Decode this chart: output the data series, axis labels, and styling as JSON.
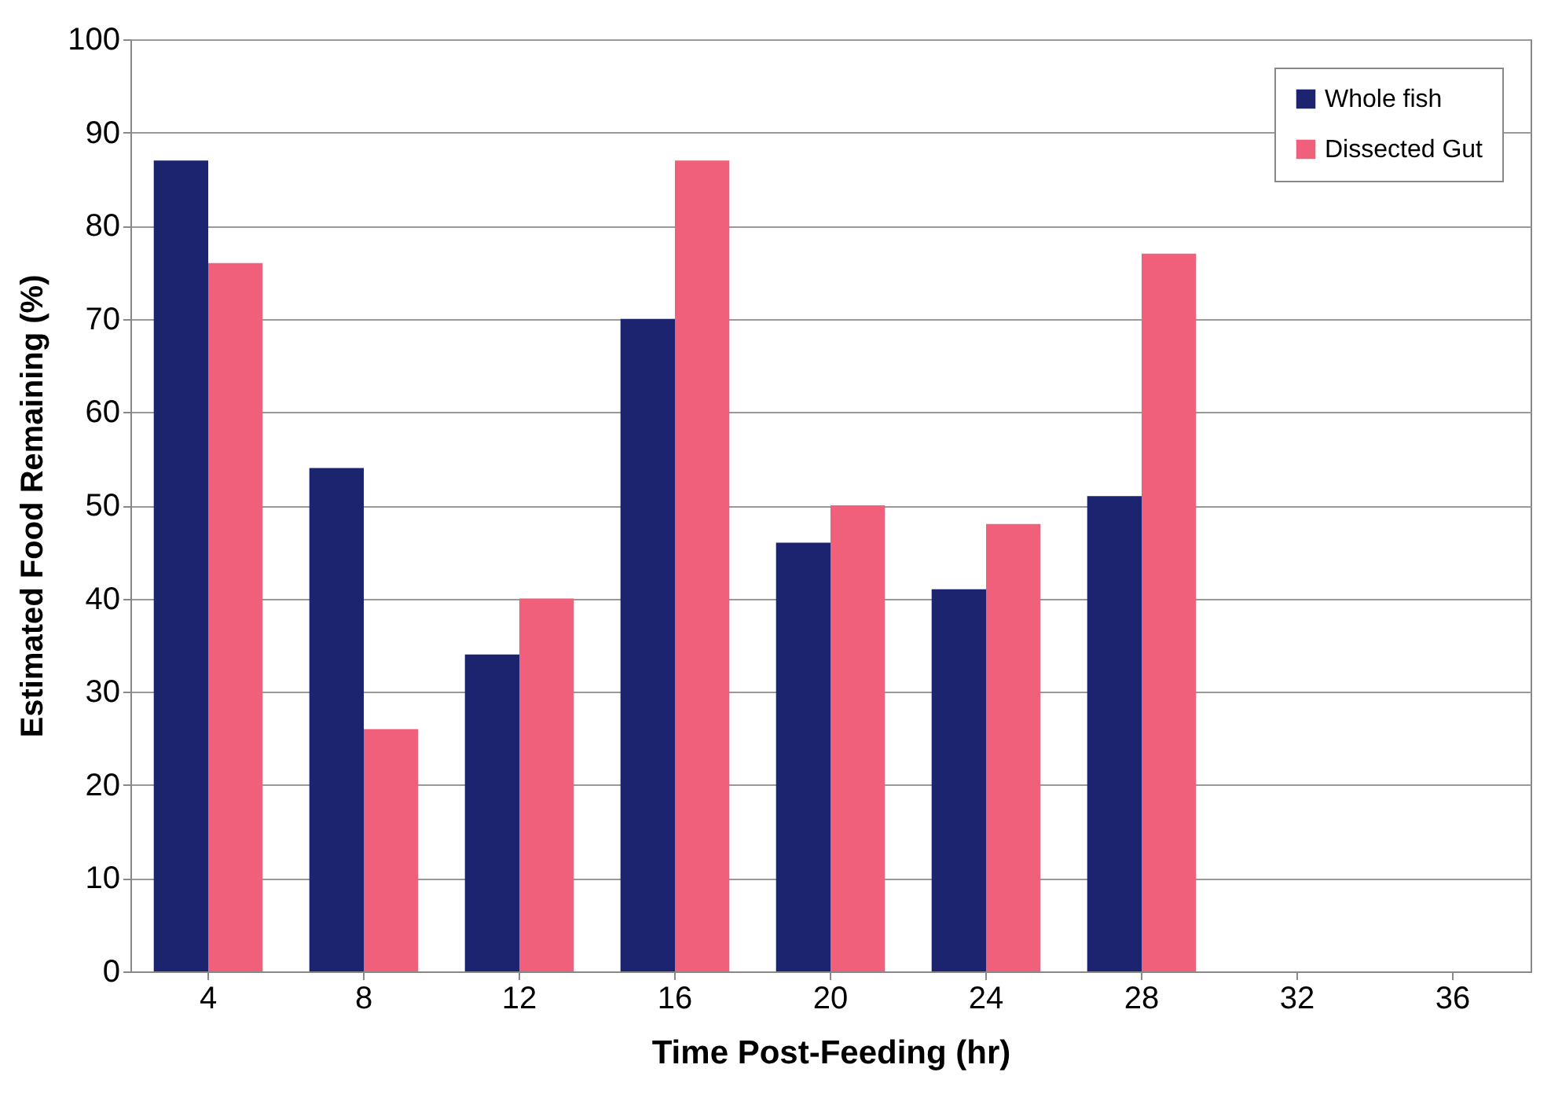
{
  "chart_data": {
    "type": "bar",
    "xlabel": "Time Post-Feeding (hr)",
    "ylabel": "Estimated Food Remaining (%)",
    "categories": [
      "4",
      "8",
      "12",
      "16",
      "20",
      "24",
      "28",
      "32",
      "36"
    ],
    "series": [
      {
        "name": "Whole fish",
        "color": "#1c2470",
        "values": [
          87,
          54,
          34,
          70,
          46,
          41,
          51,
          0,
          0
        ]
      },
      {
        "name": "Dissected Gut",
        "color": "#f0607a",
        "values": [
          76,
          26,
          40,
          87,
          50,
          48,
          77,
          0,
          0
        ]
      }
    ],
    "ylim": [
      0,
      100
    ],
    "yticks": [
      0,
      10,
      20,
      30,
      40,
      50,
      60,
      70,
      80,
      90,
      100
    ],
    "grid": "y",
    "legend": "top right"
  }
}
